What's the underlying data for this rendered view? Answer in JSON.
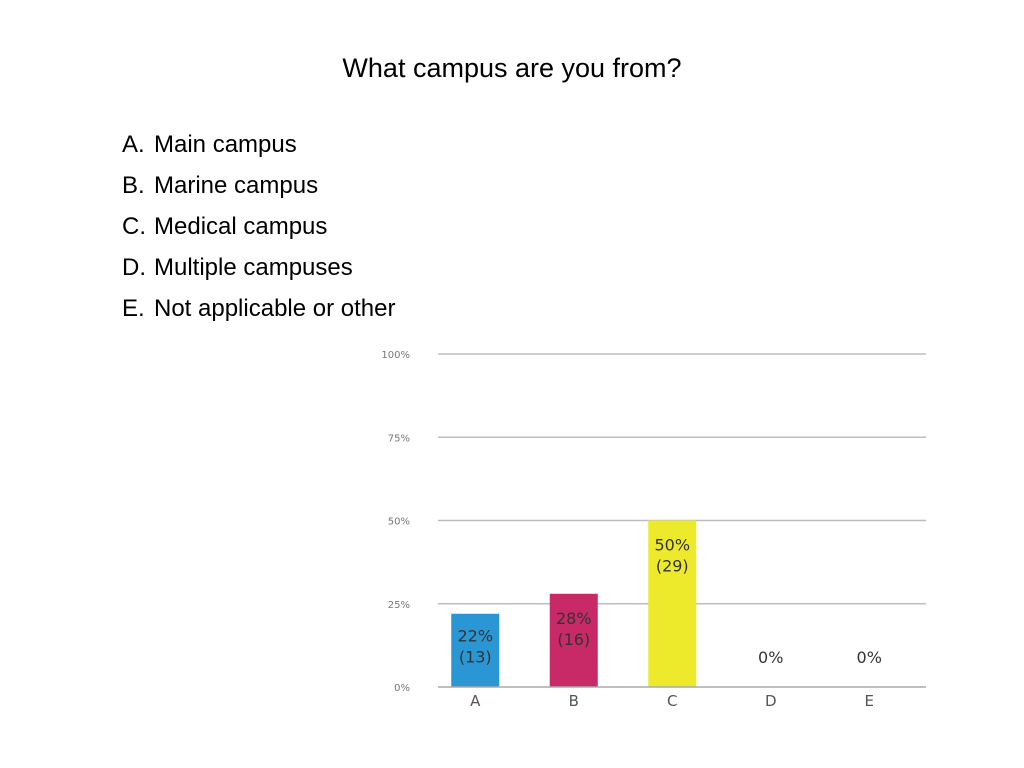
{
  "slide": {
    "title": "What campus are you from?",
    "options": [
      {
        "letter": "A.",
        "text": "Main campus"
      },
      {
        "letter": "B.",
        "text": "Marine campus"
      },
      {
        "letter": "C.",
        "text": "Medical campus"
      },
      {
        "letter": "D.",
        "text": "Multiple campuses"
      },
      {
        "letter": "E.",
        "text": "Not applicable or other"
      }
    ]
  },
  "chart_data": {
    "type": "bar",
    "categories": [
      "A",
      "B",
      "C",
      "D",
      "E"
    ],
    "values": [
      22,
      28,
      50,
      0,
      0
    ],
    "value_labels": [
      "22%",
      "28%",
      "50%",
      "0%",
      "0%"
    ],
    "counts": [
      "(13)",
      "(16)",
      "(29)",
      "",
      ""
    ],
    "ylim": [
      0,
      100
    ],
    "yticks": [
      "0%",
      "25%",
      "50%",
      "75%",
      "100%"
    ],
    "ytick_values": [
      0,
      25,
      50,
      75,
      100
    ],
    "colors": [
      "#2a97d4",
      "#c72a66",
      "#ecea2a",
      "#999999",
      "#999999"
    ],
    "grid": true,
    "legend": "none"
  }
}
